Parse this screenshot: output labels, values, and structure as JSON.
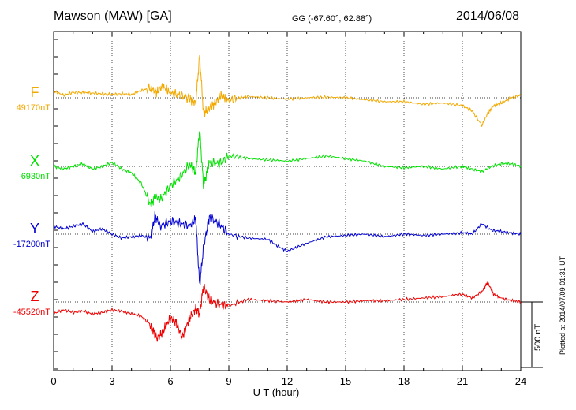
{
  "header": {
    "station": "Mawson (MAW)  [GA]",
    "coords": "GG (-67.60°,  62.88°)",
    "date": "2014/06/08"
  },
  "colors": {
    "F": "#f2a900",
    "X": "#00e000",
    "Y": "#0000d0",
    "Z": "#ee0000"
  },
  "chart_data": {
    "type": "line",
    "xlabel": "U T (hour)",
    "xlim": [
      0,
      24
    ],
    "xticks": [
      0,
      3,
      6,
      9,
      12,
      15,
      18,
      21,
      24
    ],
    "scale_bar": "500 nT",
    "plotted_note": "Plotted at 2014/07/09 01:31  UT",
    "series": [
      {
        "name": "F",
        "baseline": "49170nT",
        "x": [
          0,
          0.5,
          1,
          1.5,
          2,
          2.5,
          3,
          3.5,
          4,
          4.5,
          5,
          5.3,
          5.6,
          6,
          6.5,
          7,
          7.3,
          7.5,
          7.7,
          8,
          8.3,
          8.6,
          9,
          9.5,
          10,
          11,
          12,
          13,
          14,
          15,
          16,
          17,
          18,
          19,
          20,
          21,
          21.5,
          22,
          22.3,
          22.6,
          23,
          23.5,
          24
        ],
        "y": [
          50,
          20,
          40,
          40,
          35,
          30,
          25,
          30,
          25,
          55,
          75,
          40,
          90,
          35,
          20,
          -10,
          -40,
          320,
          -120,
          -80,
          -40,
          20,
          -20,
          0,
          10,
          0,
          -10,
          0,
          5,
          0,
          -15,
          -30,
          -30,
          -50,
          -40,
          -60,
          -100,
          -210,
          -120,
          -60,
          -40,
          0,
          20
        ]
      },
      {
        "name": "X",
        "baseline": "6930nT",
        "x": [
          0,
          0.5,
          1,
          1.5,
          2,
          2.5,
          3,
          3.5,
          4,
          4.5,
          5,
          5.2,
          5.5,
          6,
          6.5,
          7,
          7.3,
          7.5,
          7.7,
          8,
          8.5,
          9,
          10,
          11,
          12,
          13,
          14,
          15,
          16,
          17,
          18,
          19,
          20,
          21,
          21.5,
          22,
          22.5,
          23,
          23.5,
          24
        ],
        "y": [
          0,
          -20,
          0,
          20,
          -20,
          0,
          30,
          -20,
          -50,
          -130,
          -300,
          -230,
          -250,
          -150,
          -80,
          20,
          -50,
          280,
          -150,
          30,
          20,
          80,
          60,
          50,
          40,
          60,
          80,
          60,
          40,
          0,
          -10,
          0,
          -20,
          0,
          -20,
          -40,
          0,
          20,
          20,
          0
        ]
      },
      {
        "name": "Y",
        "baseline": "-17200nT",
        "x": [
          0,
          0.5,
          1,
          1.5,
          2,
          2.5,
          3,
          3.5,
          4,
          4.5,
          5,
          5.2,
          5.5,
          6,
          6.5,
          7,
          7.3,
          7.5,
          7.7,
          8,
          8.5,
          9,
          10,
          11,
          11.5,
          12,
          13,
          14,
          15,
          16,
          17,
          18,
          19,
          20,
          21,
          21.5,
          22,
          22.5,
          23,
          23.5,
          24
        ],
        "y": [
          60,
          40,
          60,
          80,
          20,
          40,
          0,
          -30,
          -20,
          -10,
          -30,
          140,
          60,
          100,
          80,
          60,
          120,
          -390,
          -100,
          130,
          80,
          0,
          -30,
          -40,
          -90,
          -130,
          -70,
          -20,
          -10,
          0,
          -20,
          0,
          -10,
          0,
          10,
          0,
          80,
          30,
          20,
          10,
          0
        ]
      },
      {
        "name": "Z",
        "baseline": "-45520nT",
        "x": [
          0,
          0.5,
          1,
          1.5,
          2,
          2.5,
          3,
          3.5,
          4,
          4.5,
          5,
          5.3,
          5.6,
          6,
          6.3,
          6.6,
          7,
          7.3,
          7.5,
          7.7,
          8,
          8.5,
          9,
          10,
          11,
          12,
          13,
          14,
          15,
          16,
          17,
          18,
          19,
          20,
          21,
          21.5,
          22,
          22.3,
          22.6,
          23,
          23.5,
          24
        ],
        "y": [
          -90,
          -60,
          -80,
          -70,
          -90,
          -80,
          -60,
          -70,
          -90,
          -110,
          -180,
          -280,
          -230,
          -120,
          -160,
          -270,
          -120,
          -50,
          -90,
          120,
          20,
          -20,
          -30,
          20,
          10,
          0,
          20,
          0,
          0,
          10,
          10,
          20,
          30,
          40,
          60,
          30,
          80,
          150,
          60,
          30,
          10,
          0
        ]
      }
    ]
  }
}
